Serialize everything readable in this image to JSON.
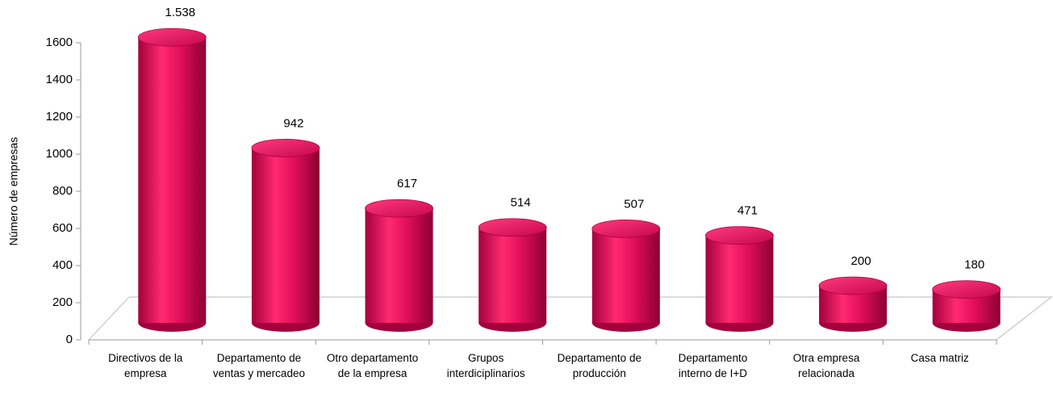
{
  "chart_data": {
    "type": "bar3d",
    "y_label": "Número de empresas",
    "categories": [
      "Directivos de la empresa",
      "Departamento de ventas y mercadeo",
      "Otro departamento de la empresa",
      "Grupos interdiciplinarios",
      "Departamento de producción",
      "Departamento interno de I+D",
      "Otra empresa relacionada",
      "Casa matriz"
    ],
    "values": [
      1538,
      942,
      617,
      514,
      507,
      471,
      200,
      180
    ],
    "value_labels": [
      "1.538",
      "942",
      "617",
      "514",
      "507",
      "471",
      "200",
      "180"
    ],
    "color": "#e5105c",
    "ylim": [
      0,
      1600
    ],
    "yticks": [
      0,
      200,
      400,
      600,
      800,
      1000,
      1200,
      1400,
      1600
    ]
  }
}
